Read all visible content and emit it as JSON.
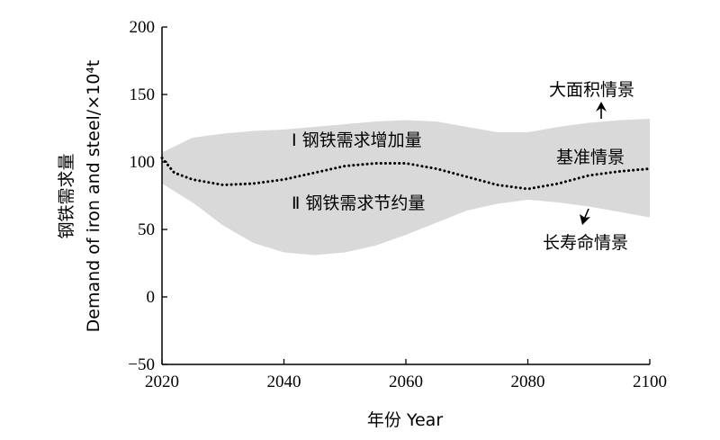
{
  "chart_data": {
    "type": "area",
    "xlabel": "年份 Year",
    "ylabel_cn": "钢铁需求量",
    "ylabel_en": "Demand of iron and steel/×10⁴t",
    "xlim": [
      2020,
      2100
    ],
    "ylim": [
      -50,
      200
    ],
    "x_ticks": [
      2020,
      2040,
      2060,
      2080,
      2100
    ],
    "y_ticks": [
      -50,
      0,
      50,
      100,
      150,
      200
    ],
    "grid": false,
    "band": {
      "x": [
        2020,
        2025,
        2030,
        2035,
        2040,
        2045,
        2050,
        2055,
        2060,
        2065,
        2070,
        2075,
        2080,
        2085,
        2090,
        2095,
        2100
      ],
      "upper": [
        107,
        118,
        121,
        123,
        124,
        126,
        128,
        130,
        131,
        130,
        126,
        122,
        122,
        126,
        129,
        131,
        132
      ],
      "lower": [
        84,
        70,
        53,
        40,
        33,
        31,
        33,
        38,
        46,
        55,
        64,
        69,
        72,
        70,
        67,
        63,
        59
      ],
      "color": "#d9d9d9"
    },
    "series": [
      {
        "name": "基准情景",
        "x": [
          2020,
          2022,
          2025,
          2030,
          2035,
          2040,
          2045,
          2050,
          2055,
          2060,
          2065,
          2070,
          2075,
          2080,
          2085,
          2090,
          2095,
          2100
        ],
        "values": [
          103,
          92,
          87,
          83,
          84,
          87,
          92,
          97,
          99,
          99,
          95,
          89,
          83,
          80,
          84,
          90,
          93,
          95
        ],
        "style": "dotted",
        "color": "#000000"
      }
    ],
    "annotations": {
      "increase": "Ⅰ 钢铁需求增加量",
      "saving": "Ⅱ 钢铁需求节约量",
      "large_area": "大面积情景",
      "baseline": "基准情景",
      "long_life": "长寿命情景"
    }
  }
}
